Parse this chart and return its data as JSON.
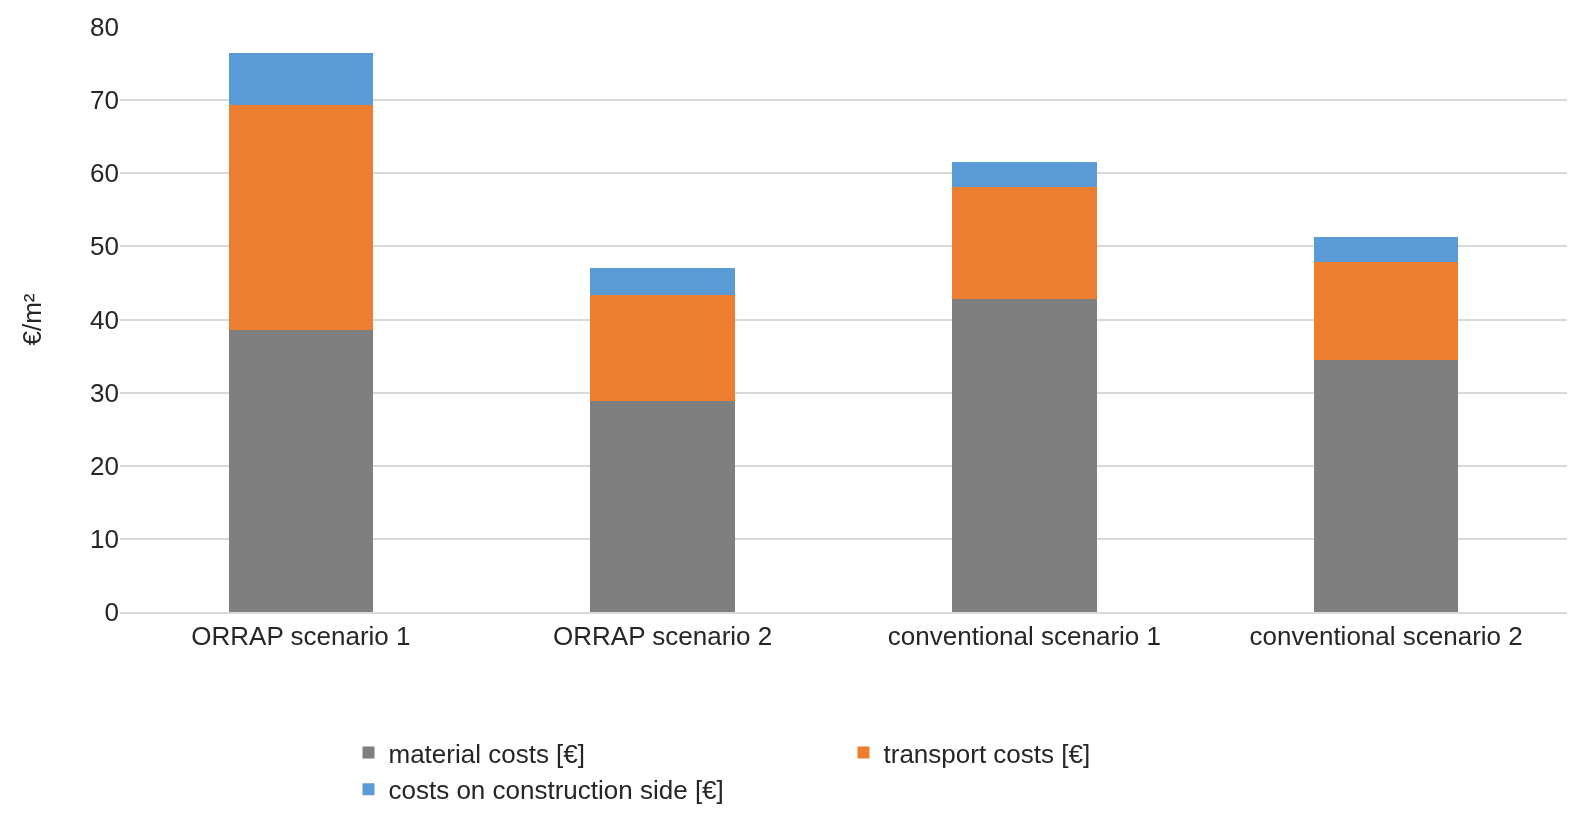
{
  "chart_data": {
    "type": "bar",
    "stacked": true,
    "ylabel": "€/m²",
    "categories": [
      "ORRAP scenario 1",
      "ORRAP scenario 2",
      "conventional scenario 1",
      "conventional scenario 2"
    ],
    "series": [
      {
        "name": "material costs [€]",
        "color": "#7f7f7f",
        "values": [
          38.5,
          28.8,
          42.8,
          34.4
        ]
      },
      {
        "name": "transport costs [€]",
        "color": "#ed7d31",
        "values": [
          30.8,
          14.5,
          15.3,
          13.5
        ]
      },
      {
        "name": "costs on construction side [€]",
        "color": "#5b9bd5",
        "values": [
          7.1,
          3.8,
          3.5,
          3.4
        ]
      }
    ],
    "ylim": [
      0,
      80
    ],
    "yticks": [
      0,
      10,
      20,
      30,
      40,
      50,
      60,
      70,
      80
    ],
    "grid": "y",
    "legend": "bottom"
  }
}
